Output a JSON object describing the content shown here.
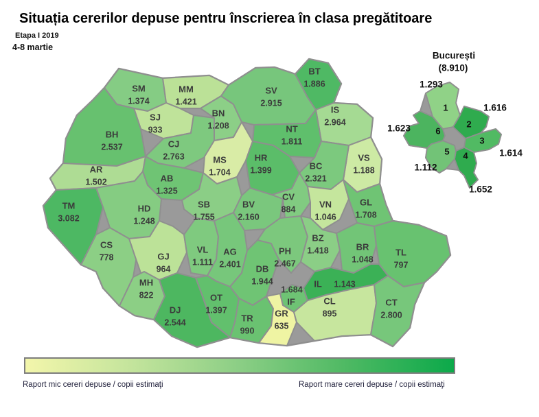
{
  "title": "Situația cererilor depuse pentru înscrierea în clasa pregătitoare",
  "etapa": "Etapa I 2019",
  "period": "4-8 martie",
  "legend": {
    "low_label": "Raport mic cereri depuse / copii estimaţi",
    "high_label": "Raport mare cereri depuse / copii estimaţi",
    "gradient": [
      "#f3f6ab",
      "#c3e49c",
      "#8bce85",
      "#4eb963",
      "#0ca94a"
    ]
  },
  "map": {
    "border_color": "#8f8f8f",
    "label_color": "#3b3b3b",
    "counties": [
      {
        "code": "SM",
        "value": "1.374",
        "color": "#85cc84"
      },
      {
        "code": "MM",
        "value": "1.421",
        "color": "#bbe197"
      },
      {
        "code": "SJ",
        "value": "933",
        "color": "#bfe39a"
      },
      {
        "code": "BH",
        "value": "2.537",
        "color": "#67c16f"
      },
      {
        "code": "CJ",
        "value": "2.763",
        "color": "#7ec97f"
      },
      {
        "code": "BN",
        "value": "1.208",
        "color": "#8ccf87"
      },
      {
        "code": "SV",
        "value": "2.915",
        "color": "#77c67c"
      },
      {
        "code": "BT",
        "value": "1.886",
        "color": "#4fb964"
      },
      {
        "code": "IS",
        "value": "2.964",
        "color": "#a5da93"
      },
      {
        "code": "NT",
        "value": "1.811",
        "color": "#5fbf6c"
      },
      {
        "code": "VS",
        "value": "1.188",
        "color": "#cdeaa4"
      },
      {
        "code": "BC",
        "value": "2.321",
        "color": "#7cc97e"
      },
      {
        "code": "MS",
        "value": "1.704",
        "color": "#d9eca6"
      },
      {
        "code": "HR",
        "value": "1.399",
        "color": "#5bbd69"
      },
      {
        "code": "AR",
        "value": "1.502",
        "color": "#aedc94"
      },
      {
        "code": "TM",
        "value": "3.082",
        "color": "#4db863"
      },
      {
        "code": "AB",
        "value": "1.325",
        "color": "#6fc474"
      },
      {
        "code": "HD",
        "value": "1.248",
        "color": "#85cc82"
      },
      {
        "code": "SB",
        "value": "1.755",
        "color": "#8bce86"
      },
      {
        "code": "BV",
        "value": "2.160",
        "color": "#7ac77d"
      },
      {
        "code": "CV",
        "value": "884",
        "color": "#81cb81"
      },
      {
        "code": "VN",
        "value": "1.046",
        "color": "#c5e69d"
      },
      {
        "code": "GL",
        "value": "1.708",
        "color": "#6fc474"
      },
      {
        "code": "CS",
        "value": "778",
        "color": "#8ccf85"
      },
      {
        "code": "GJ",
        "value": "964",
        "color": "#bce298"
      },
      {
        "code": "VL",
        "value": "1.111",
        "color": "#7fca7f"
      },
      {
        "code": "AG",
        "value": "2.401",
        "color": "#77c77b"
      },
      {
        "code": "DB",
        "value": "1.944",
        "color": "#6fc474"
      },
      {
        "code": "PH",
        "value": "2.467",
        "color": "#7cc87d"
      },
      {
        "code": "BZ",
        "value": "1.418",
        "color": "#8bce86"
      },
      {
        "code": "BR",
        "value": "1.048",
        "color": "#72c577"
      },
      {
        "code": "TL",
        "value": "797",
        "color": "#68c270"
      },
      {
        "code": "MH",
        "value": "822",
        "color": "#8ccf85"
      },
      {
        "code": "DJ",
        "value": "2.544",
        "color": "#4db760"
      },
      {
        "code": "OT",
        "value": "1.397",
        "color": "#62c06d"
      },
      {
        "code": "TR",
        "value": "990",
        "color": "#6ac271"
      },
      {
        "code": "GR",
        "value": "635",
        "color": "#eff4a3"
      },
      {
        "code": "IF",
        "value": "1.684",
        "color": "#6ec374"
      },
      {
        "code": "IL",
        "value": "1.143",
        "color": "#3bb156"
      },
      {
        "code": "CL",
        "value": "895",
        "color": "#c7e69e"
      },
      {
        "code": "CT",
        "value": "2.800",
        "color": "#77c77b"
      }
    ]
  },
  "inset": {
    "title": "București",
    "total": "(8.910)",
    "sectors": [
      {
        "num": "1",
        "value": "1.293",
        "color": "#90d287"
      },
      {
        "num": "2",
        "value": "1.616",
        "color": "#2fab4e"
      },
      {
        "num": "3",
        "value": "1.614",
        "color": "#51ba63"
      },
      {
        "num": "4",
        "value": "1.652",
        "color": "#2fab4e"
      },
      {
        "num": "5",
        "value": "1.112",
        "color": "#72c377"
      },
      {
        "num": "6",
        "value": "1.623",
        "color": "#4cb45f"
      }
    ]
  }
}
